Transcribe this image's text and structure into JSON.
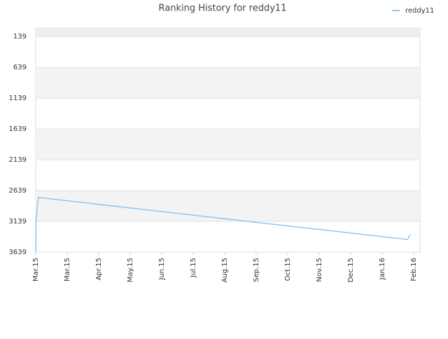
{
  "chart_data": {
    "type": "line",
    "title": "Ranking History for reddy11",
    "series": [
      {
        "name": "reddy11",
        "color": "#92c5ee",
        "x": [
          0,
          0.01,
          0.03,
          0.05,
          0.09,
          11.8,
          11.82,
          11.89
        ],
        "values": [
          3639,
          3100,
          3050,
          2900,
          2752,
          3434,
          3420,
          3354
        ]
      }
    ],
    "xlim": [
      0,
      12.2
    ],
    "xticks": [
      {
        "value": 0,
        "label": "Mar.15"
      },
      {
        "value": 1,
        "label": "Mar.15"
      },
      {
        "value": 2,
        "label": "Apr.15"
      },
      {
        "value": 3,
        "label": "May.15"
      },
      {
        "value": 4,
        "label": "Jun.15"
      },
      {
        "value": 5,
        "label": "Jul.15"
      },
      {
        "value": 6,
        "label": "Aug.15"
      },
      {
        "value": 7,
        "label": "Sep.15"
      },
      {
        "value": 8,
        "label": "Oct.15"
      },
      {
        "value": 9,
        "label": "Nov.15"
      },
      {
        "value": 10,
        "label": "Dec.15"
      },
      {
        "value": 11,
        "label": "Jan.16"
      },
      {
        "value": 12,
        "label": "Feb.16"
      }
    ],
    "ylim": [
      3639,
      0
    ],
    "yticks": [
      139,
      639,
      1139,
      1639,
      2139,
      2639,
      3139,
      3639
    ],
    "grid": true,
    "legend": "top-right"
  }
}
